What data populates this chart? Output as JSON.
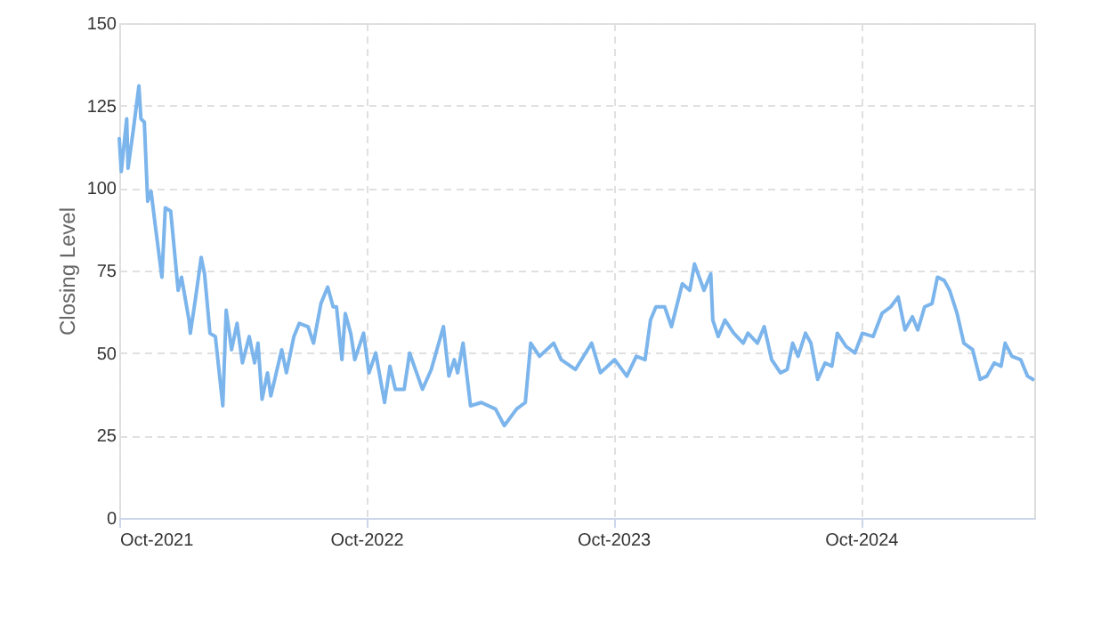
{
  "chart_data": {
    "type": "line",
    "ylabel": "Closing Level",
    "x": [
      "2021-10-01",
      "2021-10-04",
      "2021-10-12",
      "2021-10-14",
      "2021-10-22",
      "2021-10-30",
      "2021-11-02",
      "2021-11-07",
      "2021-11-12",
      "2021-11-17",
      "2021-11-23",
      "2021-12-03",
      "2021-12-08",
      "2021-12-16",
      "2021-12-27",
      "2022-01-01",
      "2022-01-12",
      "2022-01-14",
      "2022-01-22",
      "2022-01-30",
      "2022-02-04",
      "2022-02-12",
      "2022-02-20",
      "2022-03-03",
      "2022-03-08",
      "2022-03-16",
      "2022-03-24",
      "2022-04-01",
      "2022-04-11",
      "2022-04-19",
      "2022-04-24",
      "2022-04-30",
      "2022-05-08",
      "2022-05-13",
      "2022-05-21",
      "2022-05-29",
      "2022-06-05",
      "2022-06-16",
      "2022-06-24",
      "2022-07-07",
      "2022-07-15",
      "2022-07-26",
      "2022-08-05",
      "2022-08-13",
      "2022-08-18",
      "2022-08-26",
      "2022-08-31",
      "2022-09-08",
      "2022-09-14",
      "2022-09-27",
      "2022-10-05",
      "2022-10-15",
      "2022-10-28",
      "2022-11-05",
      "2022-11-13",
      "2022-11-26",
      "2022-12-04",
      "2022-12-23",
      "2023-01-05",
      "2023-01-23",
      "2023-01-31",
      "2023-02-08",
      "2023-02-13",
      "2023-02-21",
      "2023-03-04",
      "2023-03-20",
      "2023-04-10",
      "2023-04-23",
      "2023-05-11",
      "2023-05-24",
      "2023-06-01",
      "2023-06-14",
      "2023-07-05",
      "2023-07-16",
      "2023-08-06",
      "2023-08-30",
      "2023-09-12",
      "2023-10-03",
      "2023-10-21",
      "2023-11-04",
      "2023-11-17",
      "2023-11-25",
      "2023-12-03",
      "2023-12-16",
      "2023-12-26",
      "2024-01-11",
      "2024-01-22",
      "2024-01-29",
      "2024-02-12",
      "2024-02-22",
      "2024-02-25",
      "2024-03-04",
      "2024-03-14",
      "2024-03-27",
      "2024-04-10",
      "2024-04-17",
      "2024-05-01",
      "2024-05-11",
      "2024-05-22",
      "2024-06-04",
      "2024-06-14",
      "2024-06-22",
      "2024-06-30",
      "2024-07-11",
      "2024-07-19",
      "2024-07-29",
      "2024-08-09",
      "2024-08-19",
      "2024-08-27",
      "2024-09-09",
      "2024-09-22",
      "2024-10-03",
      "2024-10-19",
      "2024-11-01",
      "2024-11-14",
      "2024-11-25",
      "2024-12-05",
      "2024-12-16",
      "2024-12-24",
      "2025-01-03",
      "2025-01-14",
      "2025-01-22",
      "2025-02-01",
      "2025-02-09",
      "2025-02-20",
      "2025-03-02",
      "2025-03-15",
      "2025-03-26",
      "2025-04-05",
      "2025-04-16",
      "2025-04-26",
      "2025-05-02",
      "2025-05-12",
      "2025-05-25",
      "2025-06-04",
      "2025-06-12"
    ],
    "series": [
      {
        "color": "#7cb5ec",
        "values": [
          115,
          105,
          121,
          106,
          118,
          131,
          121,
          120,
          96,
          99,
          89,
          73,
          94,
          93,
          69,
          73,
          60,
          56,
          67,
          79,
          74,
          56,
          55,
          34,
          63,
          51,
          59,
          47,
          55,
          47,
          53,
          36,
          44,
          37,
          44,
          51,
          44,
          55,
          59,
          58,
          53,
          65,
          70,
          64,
          64,
          48,
          62,
          56,
          48,
          56,
          44,
          50,
          35,
          46,
          39,
          39,
          50,
          39,
          45,
          58,
          43,
          48,
          44,
          53,
          34,
          35,
          33,
          28,
          33,
          35,
          53,
          49,
          53,
          48,
          45,
          53,
          44,
          48,
          43,
          49,
          48,
          60,
          64,
          64,
          58,
          71,
          69,
          77,
          69,
          74,
          60,
          55,
          60,
          56,
          53,
          56,
          53,
          58,
          48,
          44,
          45,
          53,
          49,
          56,
          53,
          42,
          47,
          46,
          56,
          52,
          50,
          56,
          55,
          62,
          64,
          67,
          57,
          61,
          57,
          64,
          65,
          73,
          72,
          69,
          62,
          53,
          51,
          42,
          43,
          47,
          46,
          53,
          49,
          48,
          43,
          42
        ]
      }
    ],
    "xlim": [
      "2021-10-01",
      "2025-06-14"
    ],
    "xticks": [
      {
        "value": "2021-10-01",
        "label": "Oct-2021"
      },
      {
        "value": "2022-10-01",
        "label": "Oct-2022"
      },
      {
        "value": "2023-10-01",
        "label": "Oct-2023"
      },
      {
        "value": "2024-10-01",
        "label": "Oct-2024"
      }
    ],
    "ylim": [
      0,
      150
    ],
    "yticks": [
      0,
      25,
      50,
      75,
      100,
      125,
      150
    ],
    "grid": true,
    "line_style": "solid",
    "marker": "none"
  }
}
